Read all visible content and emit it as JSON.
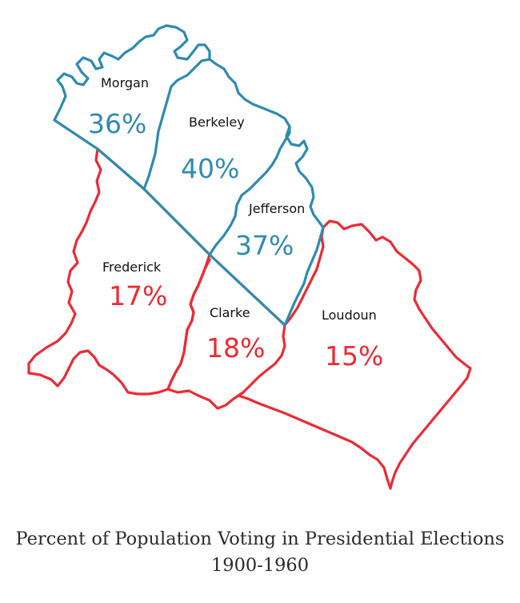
{
  "map": {
    "colors": {
      "higher_turnout": "#2e8bb0",
      "lower_turnout": "#ec2b34"
    },
    "counties": [
      {
        "id": "morgan",
        "name": "Morgan",
        "percent": "36%",
        "group": "higher_turnout"
      },
      {
        "id": "berkeley",
        "name": "Berkeley",
        "percent": "40%",
        "group": "higher_turnout"
      },
      {
        "id": "jefferson",
        "name": "Jefferson",
        "percent": "37%",
        "group": "higher_turnout"
      },
      {
        "id": "frederick",
        "name": "Frederick",
        "percent": "17%",
        "group": "lower_turnout"
      },
      {
        "id": "clarke",
        "name": "Clarke",
        "percent": "18%",
        "group": "lower_turnout"
      },
      {
        "id": "loudoun",
        "name": "Loudoun",
        "percent": "15%",
        "group": "lower_turnout"
      }
    ]
  },
  "caption": {
    "title": "Percent of Population Voting in Presidential Elections",
    "subtitle": "1900-1960"
  }
}
